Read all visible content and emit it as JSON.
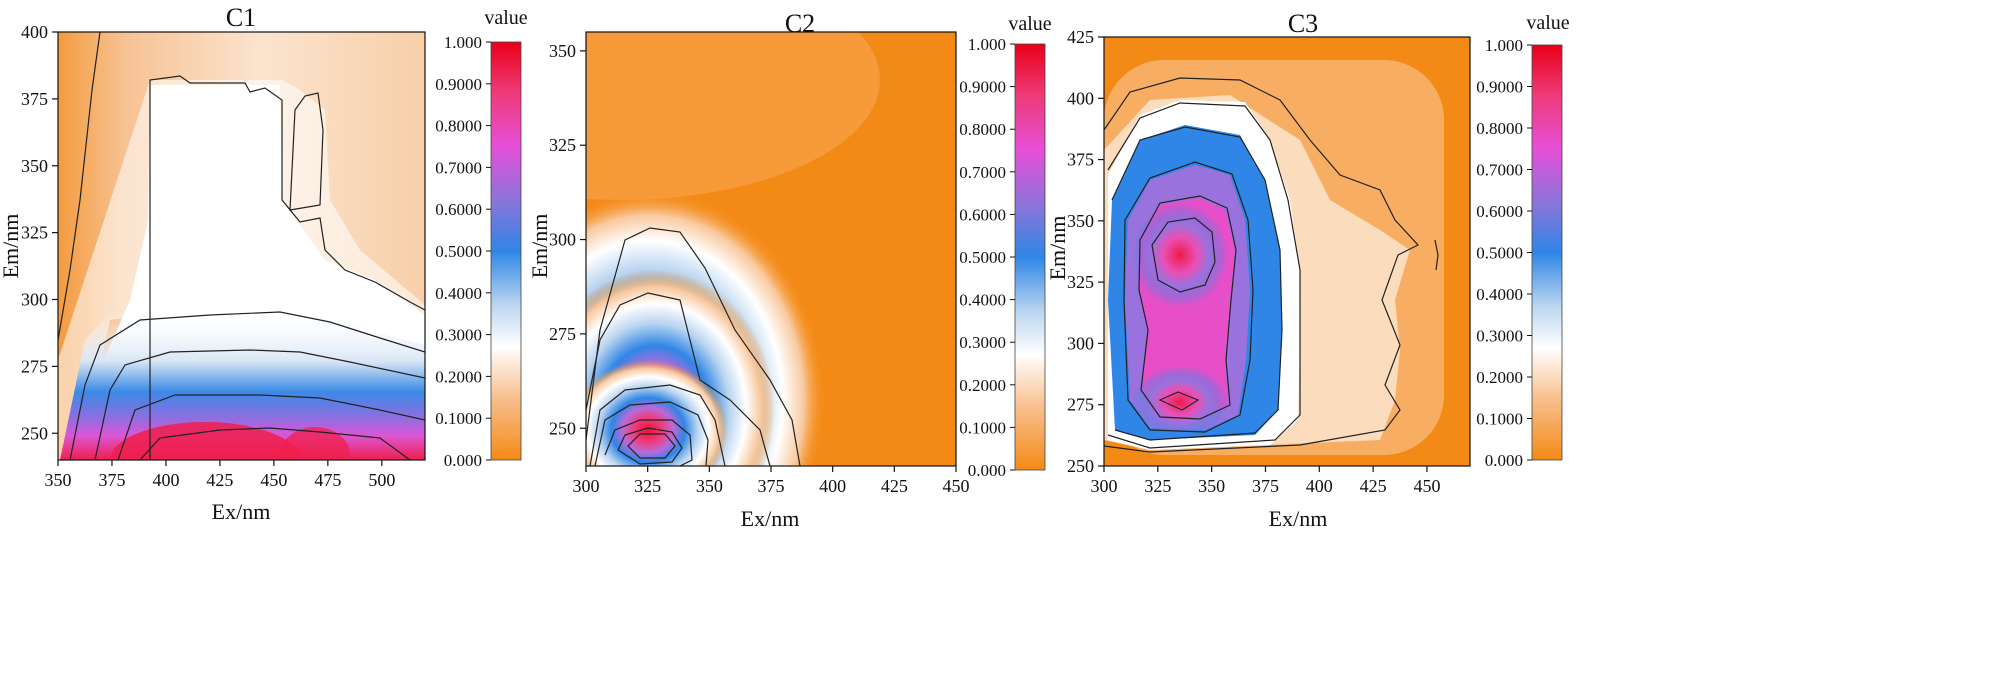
{
  "chart_data": [
    {
      "type": "heatmap",
      "title": "C1",
      "xlabel": "Ex/nm",
      "ylabel": "Em/nm",
      "xlim": [
        350,
        520
      ],
      "ylim": [
        240,
        400
      ],
      "xticks": [
        "350",
        "375",
        "400",
        "425",
        "450",
        "475",
        "500"
      ],
      "xtick_values": [
        350,
        375,
        400,
        425,
        450,
        475,
        500
      ],
      "yticks": [
        "250",
        "275",
        "300",
        "325",
        "350",
        "375",
        "400"
      ],
      "ytick_values": [
        250,
        275,
        300,
        325,
        350,
        375,
        400
      ],
      "peaks": [
        {
          "ex": 415,
          "em": 240,
          "value": 1.0
        },
        {
          "ex": 468,
          "em": 245,
          "value": 0.95
        }
      ],
      "colorbar": {
        "title": "value",
        "ticks": [
          "1.000",
          "0.9000",
          "0.8000",
          "0.7000",
          "0.6000",
          "0.5000",
          "0.4000",
          "0.3000",
          "0.2000",
          "0.1000",
          "0.000"
        ],
        "tick_values": [
          1.0,
          0.9,
          0.8,
          0.7,
          0.6,
          0.5,
          0.4,
          0.3,
          0.2,
          0.1,
          0.0
        ],
        "range": [
          0,
          1
        ]
      }
    },
    {
      "type": "heatmap",
      "title": "C2",
      "xlabel": "Ex/nm",
      "ylabel": "Em/nm",
      "xlim": [
        300,
        450
      ],
      "ylim": [
        240,
        355
      ],
      "xticks": [
        "300",
        "325",
        "350",
        "375",
        "400",
        "425",
        "450"
      ],
      "xtick_values": [
        300,
        325,
        350,
        375,
        400,
        425,
        450
      ],
      "yticks": [
        "250",
        "275",
        "300",
        "325",
        "350"
      ],
      "ytick_values": [
        250,
        275,
        300,
        325,
        350
      ],
      "peaks": [
        {
          "ex": 327,
          "em": 248,
          "value": 1.0
        }
      ],
      "colorbar": {
        "title": "value",
        "ticks": [
          "1.000",
          "0.9000",
          "0.8000",
          "0.7000",
          "0.6000",
          "0.5000",
          "0.4000",
          "0.3000",
          "0.2000",
          "0.1000",
          "0.000"
        ],
        "tick_values": [
          1.0,
          0.9,
          0.8,
          0.7,
          0.6,
          0.5,
          0.4,
          0.3,
          0.2,
          0.1,
          0.0
        ],
        "range": [
          0,
          1
        ]
      }
    },
    {
      "type": "heatmap",
      "title": "C3",
      "xlabel": "Ex/nm",
      "ylabel": "Em/nm",
      "xlim": [
        300,
        470
      ],
      "ylim": [
        250,
        425
      ],
      "xticks": [
        "300",
        "325",
        "350",
        "375",
        "400",
        "425",
        "450"
      ],
      "xtick_values": [
        300,
        325,
        350,
        375,
        400,
        425,
        450
      ],
      "yticks": [
        "250",
        "275",
        "300",
        "325",
        "350",
        "375",
        "400",
        "425"
      ],
      "ytick_values": [
        250,
        275,
        300,
        325,
        350,
        375,
        400,
        425
      ],
      "peaks": [
        {
          "ex": 335,
          "em": 335,
          "value": 1.0
        },
        {
          "ex": 335,
          "em": 276,
          "value": 0.97
        }
      ],
      "colorbar": {
        "title": "value",
        "ticks": [
          "1.000",
          "0.9000",
          "0.8000",
          "0.7000",
          "0.6000",
          "0.5000",
          "0.4000",
          "0.3000",
          "0.2000",
          "0.1000",
          "0.000"
        ],
        "tick_values": [
          1.0,
          0.9,
          0.8,
          0.7,
          0.6,
          0.5,
          0.4,
          0.3,
          0.2,
          0.1,
          0.0
        ],
        "range": [
          0,
          1
        ]
      }
    }
  ]
}
